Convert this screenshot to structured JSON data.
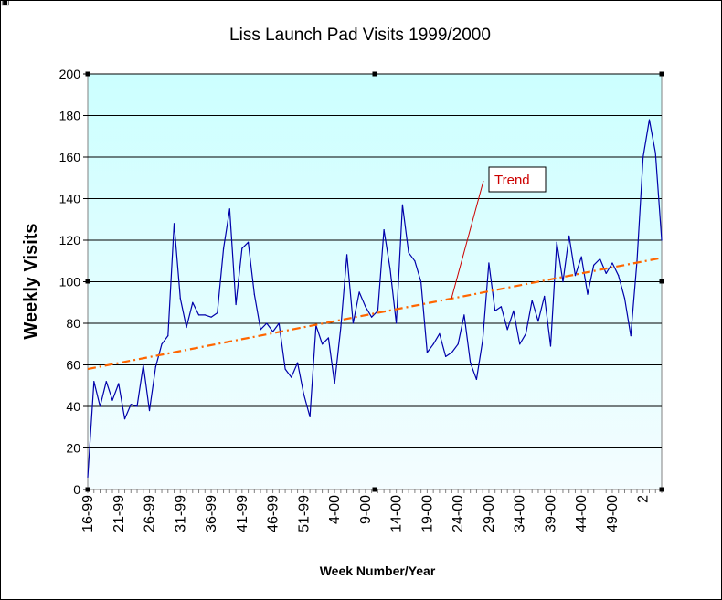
{
  "chart_data": {
    "type": "line",
    "title": "Liss Launch Pad Visits 1999/2000",
    "xlabel": "Week Number/Year",
    "ylabel": "Weekly Visits",
    "ylim": [
      0,
      200
    ],
    "yticks": [
      0,
      20,
      40,
      60,
      80,
      100,
      120,
      140,
      160,
      180,
      200
    ],
    "grid": true,
    "legend": "none",
    "x_tick_labels": [
      "16-99",
      "21-99",
      "26-99",
      "31-99",
      "36-99",
      "41-99",
      "46-99",
      "51-99",
      "4-00",
      "9-00",
      "14-00",
      "19-00",
      "24-00",
      "29-00",
      "34-00",
      "39-00",
      "44-00",
      "49-00",
      "2"
    ],
    "x_tick_every": 5,
    "series": [
      {
        "role": "visits",
        "color": "#0000aa",
        "values": [
          6,
          52,
          40,
          52,
          43,
          51,
          34,
          41,
          40,
          60,
          38,
          59,
          70,
          74,
          128,
          92,
          78,
          90,
          84,
          84,
          83,
          85,
          116,
          135,
          89,
          116,
          119,
          94,
          77,
          80,
          76,
          80,
          58,
          54,
          61,
          46,
          35,
          79,
          70,
          73,
          51,
          78,
          113,
          80,
          95,
          88,
          83,
          86,
          125,
          106,
          80,
          137,
          114,
          110,
          100,
          66,
          70,
          75,
          64,
          66,
          70,
          84,
          61,
          53,
          72,
          109,
          86,
          88,
          77,
          86,
          70,
          75,
          91,
          81,
          93,
          69,
          119,
          100,
          122,
          103,
          112,
          94,
          108,
          111,
          104,
          109,
          103,
          92,
          74,
          110,
          160,
          178,
          162,
          120
        ]
      },
      {
        "role": "trend",
        "color": "#ff6600",
        "values": [
          58,
          111.5
        ]
      }
    ],
    "annotations": [
      {
        "text": "Trend",
        "color": "#cc0000"
      }
    ]
  },
  "style": {
    "plot_top_color": "#ccffff",
    "plot_bottom_color": "#f4fdff",
    "grid_color": "#000000",
    "axis_color": "#808080",
    "label_color": "#000000"
  }
}
